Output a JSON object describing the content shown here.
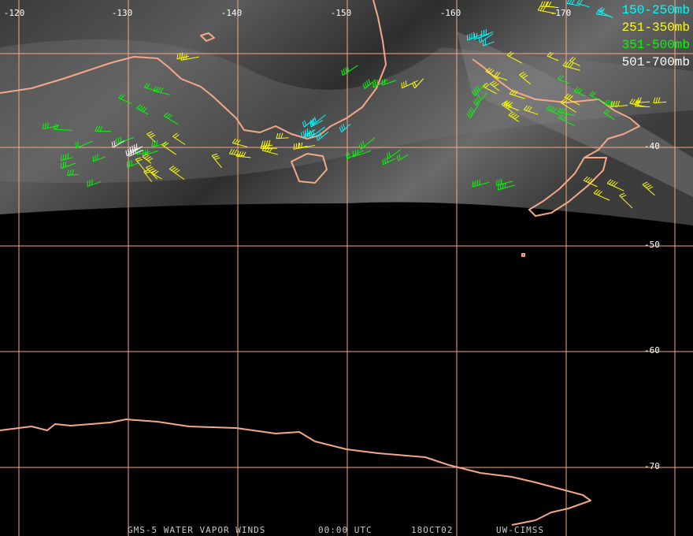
{
  "map": {
    "longitude_labels": [
      "-120",
      "-130",
      "-140",
      "-150",
      "-160",
      "-170"
    ],
    "latitude_labels": [
      "-40",
      "-50",
      "-60",
      "-70"
    ],
    "legend": [
      {
        "label": "150-250mb",
        "color": "#00ffff"
      },
      {
        "label": "251-350mb",
        "color": "#ffff00"
      },
      {
        "label": "351-500mb",
        "color": "#00ff00"
      },
      {
        "label": "501-700mb",
        "color": "#ffffff"
      }
    ],
    "footer": [
      "GMS-5 WATER VAPOR WINDS",
      "00:00 UTC",
      "18OCT02",
      "UW-CIMSS"
    ]
  }
}
